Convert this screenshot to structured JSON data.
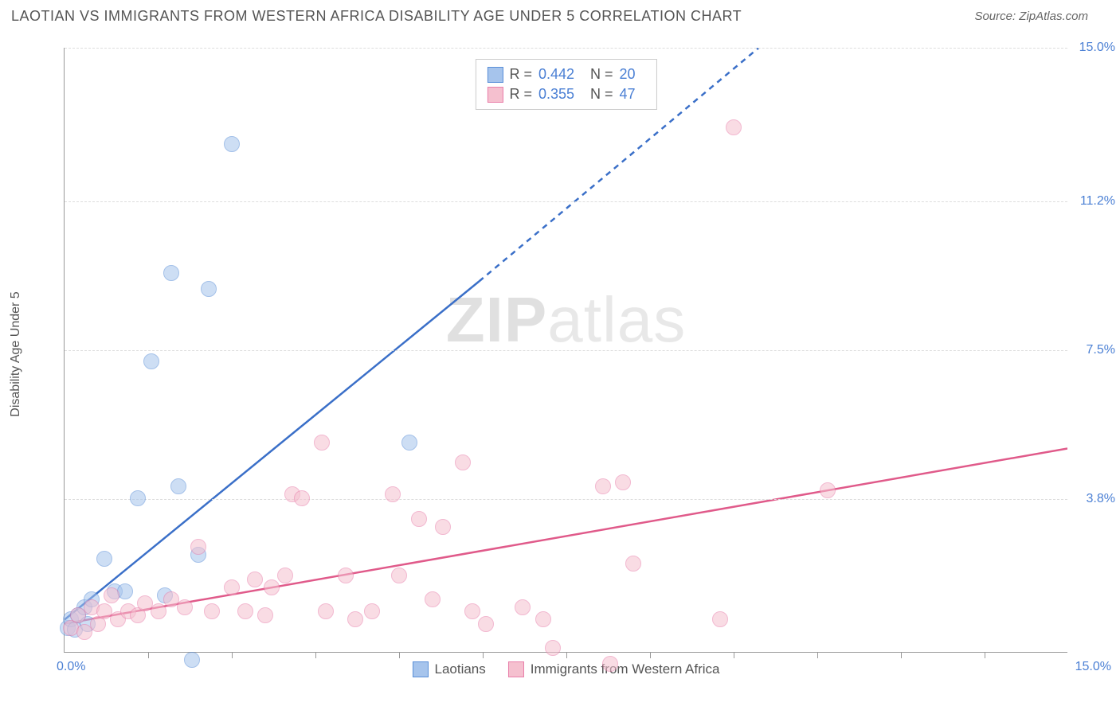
{
  "title": "LAOTIAN VS IMMIGRANTS FROM WESTERN AFRICA DISABILITY AGE UNDER 5 CORRELATION CHART",
  "source": "Source: ZipAtlas.com",
  "y_axis_label": "Disability Age Under 5",
  "watermark_bold": "ZIP",
  "watermark_rest": "atlas",
  "chart": {
    "type": "scatter",
    "xlim": [
      0,
      15
    ],
    "ylim": [
      0,
      15
    ],
    "x_origin_label": "0.0%",
    "x_max_label": "15.0%",
    "y_ticks": [
      {
        "value": 3.8,
        "label": "3.8%"
      },
      {
        "value": 7.5,
        "label": "7.5%"
      },
      {
        "value": 11.2,
        "label": "11.2%"
      },
      {
        "value": 15.0,
        "label": "15.0%"
      }
    ],
    "x_tick_positions": [
      1.25,
      2.5,
      3.75,
      5.0,
      6.25,
      7.5,
      8.75,
      10.0,
      11.25,
      12.5,
      13.75
    ],
    "grid_color": "#dddddd",
    "axis_color": "#999999",
    "background_color": "#ffffff",
    "tick_label_color": "#4a7fd4",
    "point_radius": 10,
    "point_opacity": 0.55,
    "series": [
      {
        "name": "Laotians",
        "fill_color": "#a6c4ec",
        "stroke_color": "#5a8fd8",
        "trend_color": "#3a6fc8",
        "R": "0.442",
        "N": "20",
        "trend": {
          "x1": 0.0,
          "y1": 0.8,
          "x2": 6.2,
          "y2": 9.2,
          "dash_from_x": 6.2,
          "dash_to_x": 10.6,
          "dash_to_y": 15.3
        },
        "points": [
          {
            "x": 0.05,
            "y": 0.6
          },
          {
            "x": 0.1,
            "y": 0.8
          },
          {
            "x": 0.15,
            "y": 0.55
          },
          {
            "x": 0.2,
            "y": 0.9
          },
          {
            "x": 0.3,
            "y": 1.1
          },
          {
            "x": 0.35,
            "y": 0.7
          },
          {
            "x": 0.4,
            "y": 1.3
          },
          {
            "x": 0.6,
            "y": 2.3
          },
          {
            "x": 0.75,
            "y": 1.5
          },
          {
            "x": 0.9,
            "y": 1.5
          },
          {
            "x": 1.1,
            "y": 3.8
          },
          {
            "x": 1.3,
            "y": 7.2
          },
          {
            "x": 1.5,
            "y": 1.4
          },
          {
            "x": 1.6,
            "y": 9.4
          },
          {
            "x": 1.7,
            "y": 4.1
          },
          {
            "x": 1.9,
            "y": -0.2
          },
          {
            "x": 2.0,
            "y": 2.4
          },
          {
            "x": 2.15,
            "y": 9.0
          },
          {
            "x": 2.5,
            "y": 12.6
          },
          {
            "x": 5.15,
            "y": 5.2
          }
        ]
      },
      {
        "name": "Immigrants from Western Africa",
        "fill_color": "#f5c0cf",
        "stroke_color": "#e97faa",
        "trend_color": "#e05a8a",
        "R": "0.355",
        "N": "47",
        "trend": {
          "x1": 0.0,
          "y1": 0.7,
          "x2": 15.0,
          "y2": 5.05
        },
        "points": [
          {
            "x": 0.1,
            "y": 0.6
          },
          {
            "x": 0.2,
            "y": 0.9
          },
          {
            "x": 0.3,
            "y": 0.5
          },
          {
            "x": 0.4,
            "y": 1.1
          },
          {
            "x": 0.5,
            "y": 0.7
          },
          {
            "x": 0.6,
            "y": 1.0
          },
          {
            "x": 0.7,
            "y": 1.4
          },
          {
            "x": 0.8,
            "y": 0.8
          },
          {
            "x": 0.95,
            "y": 1.0
          },
          {
            "x": 1.1,
            "y": 0.9
          },
          {
            "x": 1.2,
            "y": 1.2
          },
          {
            "x": 1.4,
            "y": 1.0
          },
          {
            "x": 1.6,
            "y": 1.3
          },
          {
            "x": 1.8,
            "y": 1.1
          },
          {
            "x": 2.0,
            "y": 2.6
          },
          {
            "x": 2.2,
            "y": 1.0
          },
          {
            "x": 2.5,
            "y": 1.6
          },
          {
            "x": 2.7,
            "y": 1.0
          },
          {
            "x": 2.85,
            "y": 1.8
          },
          {
            "x": 3.0,
            "y": 0.9
          },
          {
            "x": 3.1,
            "y": 1.6
          },
          {
            "x": 3.3,
            "y": 1.9
          },
          {
            "x": 3.4,
            "y": 3.9
          },
          {
            "x": 3.55,
            "y": 3.8
          },
          {
            "x": 3.85,
            "y": 5.2
          },
          {
            "x": 3.9,
            "y": 1.0
          },
          {
            "x": 4.2,
            "y": 1.9
          },
          {
            "x": 4.35,
            "y": 0.8
          },
          {
            "x": 4.6,
            "y": 1.0
          },
          {
            "x": 4.9,
            "y": 3.9
          },
          {
            "x": 5.0,
            "y": 1.9
          },
          {
            "x": 5.3,
            "y": 3.3
          },
          {
            "x": 5.5,
            "y": 1.3
          },
          {
            "x": 5.65,
            "y": 3.1
          },
          {
            "x": 5.95,
            "y": 4.7
          },
          {
            "x": 6.1,
            "y": 1.0
          },
          {
            "x": 6.3,
            "y": 0.7
          },
          {
            "x": 6.85,
            "y": 1.1
          },
          {
            "x": 7.15,
            "y": 0.8
          },
          {
            "x": 7.3,
            "y": 0.1
          },
          {
            "x": 8.05,
            "y": 4.1
          },
          {
            "x": 8.15,
            "y": -0.3
          },
          {
            "x": 8.35,
            "y": 4.2
          },
          {
            "x": 8.5,
            "y": 2.2
          },
          {
            "x": 9.8,
            "y": 0.8
          },
          {
            "x": 10.0,
            "y": 13.0
          },
          {
            "x": 11.4,
            "y": 4.0
          }
        ]
      }
    ]
  },
  "stats_labels": {
    "R": "R =",
    "N": "N ="
  },
  "legend": {
    "items": [
      {
        "label": "Laotians",
        "fill": "#a6c4ec",
        "stroke": "#5a8fd8"
      },
      {
        "label": "Immigrants from Western Africa",
        "fill": "#f5c0cf",
        "stroke": "#e97faa"
      }
    ]
  }
}
